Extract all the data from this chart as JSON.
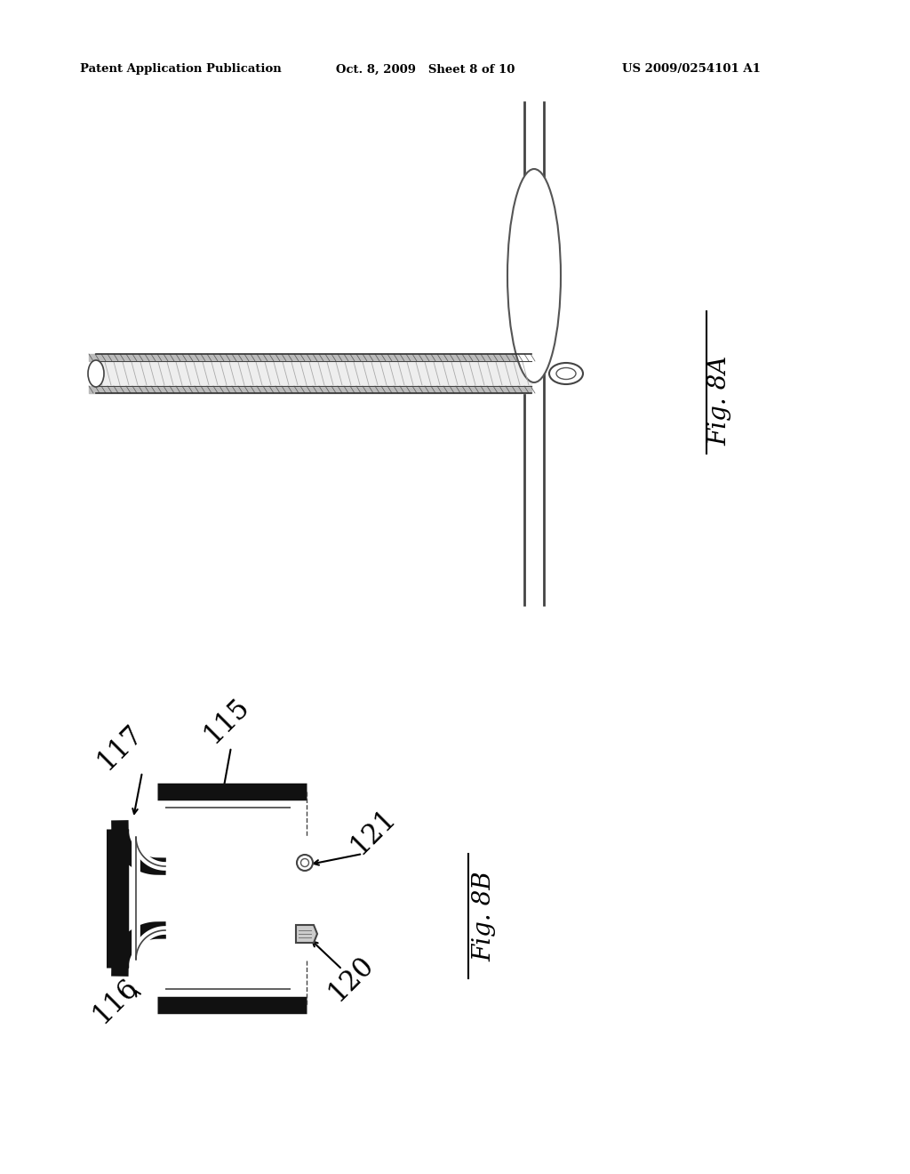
{
  "background_color": "#ffffff",
  "header_left": "Patent Application Publication",
  "header_mid": "Oct. 8, 2009   Sheet 8 of 10",
  "header_right": "US 2009/0254101 A1",
  "fig8A_label": "Fig. 8A",
  "fig8B_label": "Fig. 8B",
  "label_117": "117",
  "label_115": "115",
  "label_121": "121",
  "label_120": "120",
  "label_116": "116"
}
